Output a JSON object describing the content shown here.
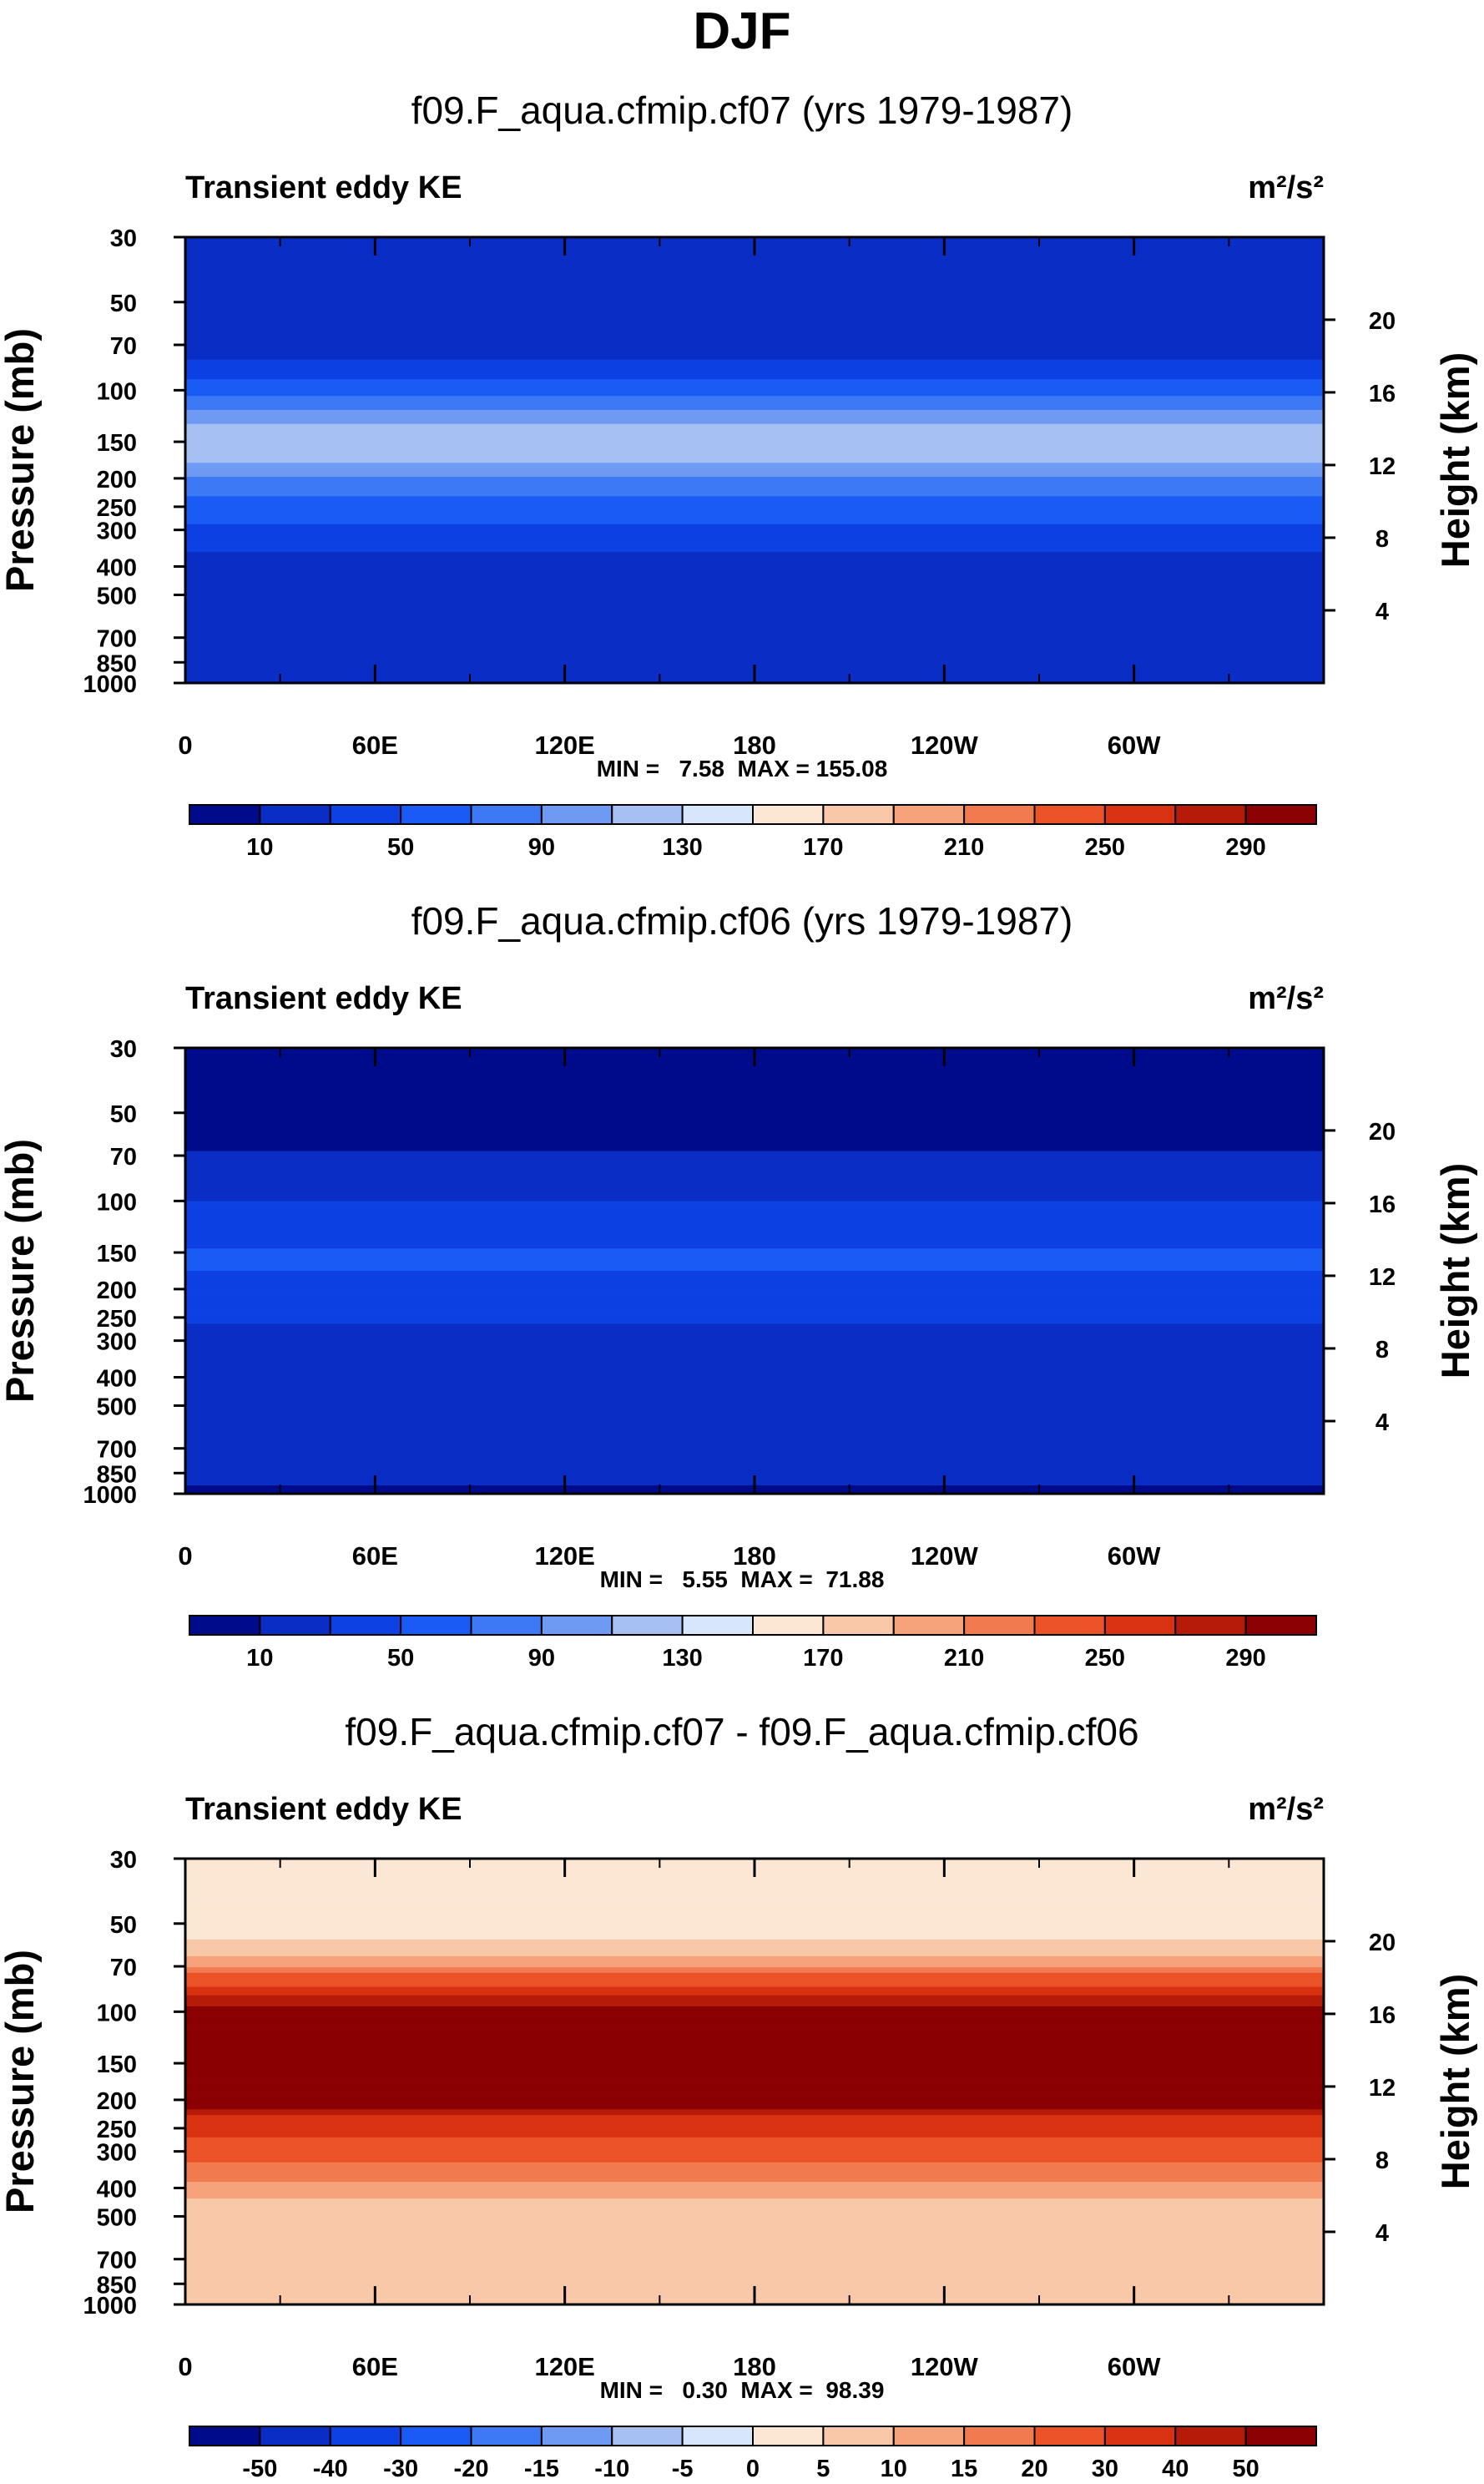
{
  "page_title": "DJF",
  "chart_data": [
    {
      "type": "heatmap",
      "title": "f09.F_aqua.cfmip.cf07 (yrs 1979-1987)",
      "variable_label": "Transient eddy KE",
      "units": "m²/s²",
      "ylabel": "Pressure (mb)",
      "y2label": "Height (km)",
      "x_ticks": [
        "0",
        "60E",
        "120E",
        "180",
        "120W",
        "60W"
      ],
      "y_ticks": [
        "30",
        "50",
        "70",
        "100",
        "150",
        "200",
        "250",
        "300",
        "400",
        "500",
        "700",
        "850",
        "1000"
      ],
      "y2_ticks": [
        "20",
        "16",
        "12",
        "8",
        "4"
      ],
      "stats": "MIN =   7.58  MAX = 155.08",
      "min": 7.58,
      "max": 155.08,
      "colorbar": {
        "levels": [
          -10,
          10,
          30,
          50,
          70,
          90,
          110,
          130,
          150,
          170,
          190,
          210,
          230,
          250,
          270,
          290,
          310
        ],
        "labels": [
          "10",
          "50",
          "90",
          "130",
          "170",
          "210",
          "250",
          "290"
        ],
        "colors": [
          "#000b8c",
          "#0a2ec5",
          "#0d41e3",
          "#1b5bf5",
          "#3d79f5",
          "#6e9af4",
          "#a7c0f4",
          "#d7e6fb",
          "#fbe7d4",
          "#f9c8a9",
          "#f6a37c",
          "#f27a4f",
          "#ec5227",
          "#d93212",
          "#b51b08",
          "#8b0000"
        ]
      },
      "profile": [
        {
          "p": 30,
          "v": 12
        },
        {
          "p": 55,
          "v": 14
        },
        {
          "p": 75,
          "v": 25
        },
        {
          "p": 95,
          "v": 55
        },
        {
          "p": 115,
          "v": 88
        },
        {
          "p": 140,
          "v": 125
        },
        {
          "p": 160,
          "v": 128
        },
        {
          "p": 190,
          "v": 95
        },
        {
          "p": 240,
          "v": 65
        },
        {
          "p": 300,
          "v": 45
        },
        {
          "p": 360,
          "v": 30
        },
        {
          "p": 430,
          "v": 16
        },
        {
          "p": 600,
          "v": 12
        },
        {
          "p": 1000,
          "v": 10
        }
      ]
    },
    {
      "type": "heatmap",
      "title": "f09.F_aqua.cfmip.cf06 (yrs 1979-1987)",
      "variable_label": "Transient eddy KE",
      "units": "m²/s²",
      "ylabel": "Pressure (mb)",
      "y2label": "Height (km)",
      "x_ticks": [
        "0",
        "60E",
        "120E",
        "180",
        "120W",
        "60W"
      ],
      "y_ticks": [
        "30",
        "50",
        "70",
        "100",
        "150",
        "200",
        "250",
        "300",
        "400",
        "500",
        "700",
        "850",
        "1000"
      ],
      "y2_ticks": [
        "20",
        "16",
        "12",
        "8",
        "4"
      ],
      "stats": "MIN =   5.55  MAX =  71.88",
      "min": 5.55,
      "max": 71.88,
      "colorbar": {
        "levels": [
          -10,
          10,
          30,
          50,
          70,
          90,
          110,
          130,
          150,
          170,
          190,
          210,
          230,
          250,
          270,
          290,
          310
        ],
        "labels": [
          "10",
          "50",
          "90",
          "130",
          "170",
          "210",
          "250",
          "290"
        ],
        "colors": [
          "#000b8c",
          "#0a2ec5",
          "#0d41e3",
          "#1b5bf5",
          "#3d79f5",
          "#6e9af4",
          "#a7c0f4",
          "#d7e6fb",
          "#fbe7d4",
          "#f9c8a9",
          "#f6a37c",
          "#f27a4f",
          "#ec5227",
          "#d93212",
          "#b51b08",
          "#8b0000"
        ]
      },
      "profile": [
        {
          "p": 30,
          "v": 5
        },
        {
          "p": 65,
          "v": 8
        },
        {
          "p": 85,
          "v": 22
        },
        {
          "p": 120,
          "v": 40
        },
        {
          "p": 150,
          "v": 52
        },
        {
          "p": 200,
          "v": 48
        },
        {
          "p": 260,
          "v": 30
        },
        {
          "p": 400,
          "v": 20
        },
        {
          "p": 700,
          "v": 14
        },
        {
          "p": 900,
          "v": 11
        },
        {
          "p": 1000,
          "v": 8
        }
      ]
    },
    {
      "type": "heatmap",
      "title": "f09.F_aqua.cfmip.cf07 - f09.F_aqua.cfmip.cf06",
      "variable_label": "Transient eddy KE",
      "units": "m²/s²",
      "ylabel": "Pressure (mb)",
      "y2label": "Height (km)",
      "x_ticks": [
        "0",
        "60E",
        "120E",
        "180",
        "120W",
        "60W"
      ],
      "y_ticks": [
        "30",
        "50",
        "70",
        "100",
        "150",
        "200",
        "250",
        "300",
        "400",
        "500",
        "700",
        "850",
        "1000"
      ],
      "y2_ticks": [
        "20",
        "16",
        "12",
        "8",
        "4"
      ],
      "stats": "MIN =   0.30  MAX =  98.39",
      "min": 0.3,
      "max": 98.39,
      "colorbar": {
        "levels": [
          -70,
          -50,
          -40,
          -30,
          -20,
          -15,
          -10,
          -5,
          0,
          5,
          10,
          15,
          20,
          30,
          40,
          50,
          70
        ],
        "labels": [
          "-50",
          "-40",
          "-30",
          "-20",
          "-15",
          "-10",
          "-5",
          "0",
          "5",
          "10",
          "15",
          "20",
          "30",
          "40",
          "50"
        ],
        "colors": [
          "#000b8c",
          "#0a2ec5",
          "#0d41e3",
          "#1b5bf5",
          "#3d79f5",
          "#6e9af4",
          "#a7c0f4",
          "#d7e6fb",
          "#fbe7d4",
          "#f9c8a9",
          "#f6a37c",
          "#f27a4f",
          "#ec5227",
          "#d93212",
          "#b51b08",
          "#8b0000"
        ]
      },
      "profile": [
        {
          "p": 30,
          "v": 2
        },
        {
          "p": 55,
          "v": 4
        },
        {
          "p": 62,
          "v": 7
        },
        {
          "p": 70,
          "v": 14
        },
        {
          "p": 80,
          "v": 28
        },
        {
          "p": 95,
          "v": 48
        },
        {
          "p": 110,
          "v": 75
        },
        {
          "p": 190,
          "v": 75
        },
        {
          "p": 230,
          "v": 38
        },
        {
          "p": 280,
          "v": 28
        },
        {
          "p": 330,
          "v": 19
        },
        {
          "p": 390,
          "v": 14
        },
        {
          "p": 450,
          "v": 9
        },
        {
          "p": 600,
          "v": 8
        },
        {
          "p": 1000,
          "v": 7
        }
      ]
    }
  ]
}
